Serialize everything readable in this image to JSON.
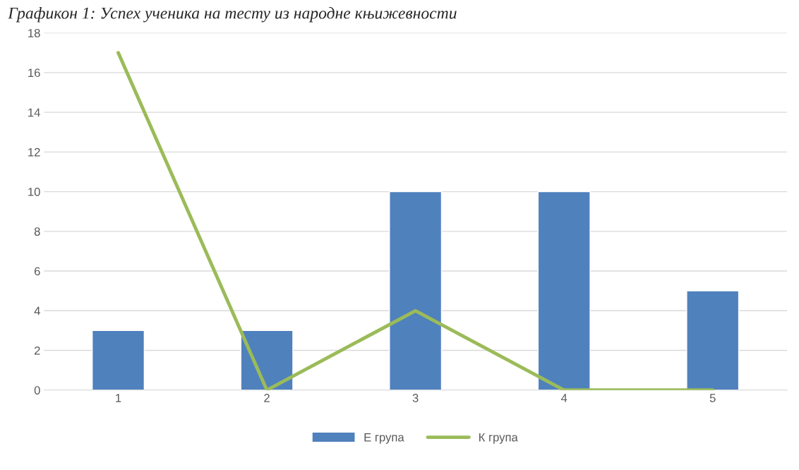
{
  "chart_data": {
    "type": "bar",
    "title": "Графикон 1: Успех ученика на тесту из народне књижевности",
    "categories": [
      "1",
      "2",
      "3",
      "4",
      "5"
    ],
    "series": [
      {
        "name": "Е група",
        "color": "#4f81bd",
        "values": [
          3,
          3,
          10,
          10,
          5
        ]
      },
      {
        "name": "К група",
        "color": "#9bbb59",
        "type": "line",
        "values": [
          17,
          0,
          4,
          0,
          0
        ]
      }
    ],
    "ylim": [
      0,
      18
    ],
    "yticks": [
      0,
      2,
      4,
      6,
      8,
      10,
      12,
      14,
      16,
      18
    ],
    "grid": "y",
    "legend": "bottom"
  }
}
